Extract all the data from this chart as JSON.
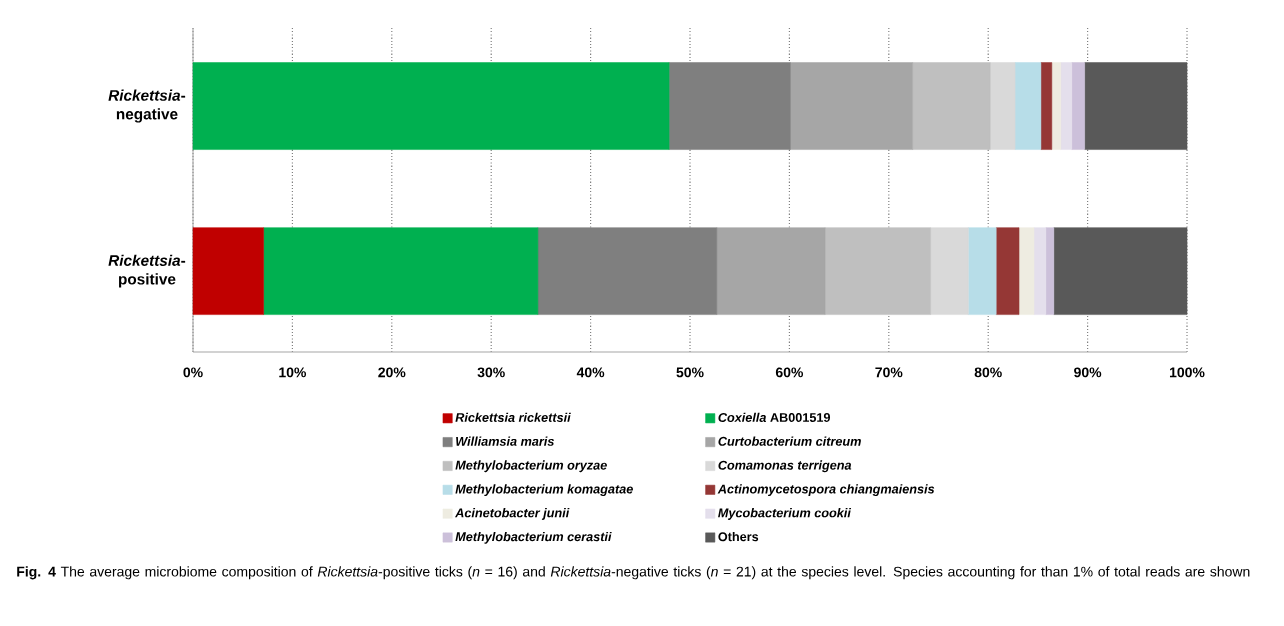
{
  "chart_data": {
    "type": "bar",
    "orientation": "horizontal",
    "stacked": true,
    "grid": "x",
    "legend": "bottom",
    "categories": [
      "*Rickettsia*-negative",
      "*Rickettsia*-positive"
    ],
    "xlim": [
      0,
      100
    ],
    "xticks": [
      {
        "value": 0,
        "label": "0%"
      },
      {
        "value": 10,
        "label": "10%"
      },
      {
        "value": 20,
        "label": "20%"
      },
      {
        "value": 30,
        "label": "30%"
      },
      {
        "value": 40,
        "label": "40%"
      },
      {
        "value": 50,
        "label": "50%"
      },
      {
        "value": 60,
        "label": "60%"
      },
      {
        "value": 70,
        "label": "70%"
      },
      {
        "value": 80,
        "label": "80%"
      },
      {
        "value": 90,
        "label": "90%"
      },
      {
        "value": 100,
        "label": "100%"
      }
    ],
    "series": [
      {
        "name": "*Rickettsia rickettsii*",
        "color": "#c00000",
        "values": [
          0,
          7.1
        ]
      },
      {
        "name": "*Coxiella* AB001519",
        "color": "#00b050",
        "values": [
          47.9,
          27.6
        ]
      },
      {
        "name": "*Williamsia maris*",
        "color": "#7f7f7f",
        "values": [
          12.2,
          18.0
        ]
      },
      {
        "name": "*Curtobacterium citreum*",
        "color": "#a6a6a6",
        "values": [
          12.3,
          10.9
        ]
      },
      {
        "name": "*Methylobacterium oryzae*",
        "color": "#bfbfbf",
        "values": [
          7.8,
          10.6
        ]
      },
      {
        "name": "*Comamonas terrigena*",
        "color": "#d9d9d9",
        "values": [
          2.5,
          3.8
        ]
      },
      {
        "name": "*Methylobacterium komagatae*",
        "color": "#b7dde8",
        "values": [
          2.6,
          2.8
        ]
      },
      {
        "name": "*Actinomycetospora chiangmaiensis*",
        "color": "#953735",
        "values": [
          1.1,
          2.3
        ]
      },
      {
        "name": "*Acinetobacter junii*",
        "color": "#eeece1",
        "values": [
          0.9,
          1.5
        ]
      },
      {
        "name": "*Mycobacterium cookii*",
        "color": "#e4dfec",
        "values": [
          1.1,
          1.2
        ]
      },
      {
        "name": "*Methylobacterium cerastii*",
        "color": "#ccc0da",
        "values": [
          1.3,
          0.8
        ]
      },
      {
        "name": "Others",
        "color": "#595959",
        "values": [
          10.3,
          13.4
        ]
      }
    ],
    "annotations": [
      "**Fig. 4** The average microbiome composition of *Rickettsia*-positive ticks (*n* = 16) and *Rickettsia*-negative ticks (*n* = 21) at the species level. Species accounting for than 1% of total reads are shown"
    ]
  }
}
